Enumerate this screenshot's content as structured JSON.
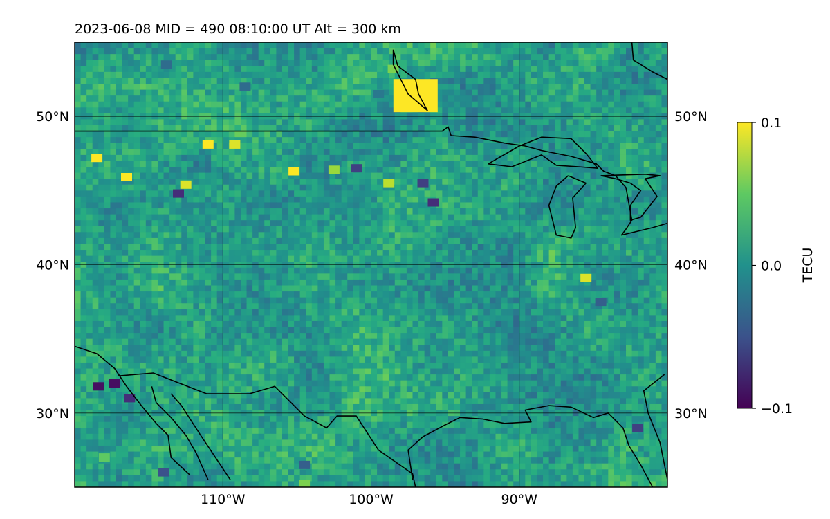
{
  "title": "2023-06-08  MID = 490    08:10:00  UT  Alt = 300 km",
  "map": {
    "lon_range": [
      -120,
      -80
    ],
    "lat_range": [
      25,
      55
    ],
    "lat_ticks": [
      {
        "value": 30,
        "label": "30°N"
      },
      {
        "value": 40,
        "label": "40°N"
      },
      {
        "value": 50,
        "label": "50°N"
      }
    ],
    "lon_ticks": [
      {
        "value": -110,
        "label": "110°W"
      },
      {
        "value": -100,
        "label": "100°W"
      },
      {
        "value": -90,
        "label": "90°W"
      }
    ],
    "gridlines": true,
    "colormap": "viridis",
    "hotspots": [
      {
        "lon": -97,
        "lat": 51.4,
        "tec": 0.1
      },
      {
        "lon": -98.5,
        "lat": 53.2,
        "tec": 0.06
      },
      {
        "lon": -118.5,
        "lat": 47.2,
        "tec": 0.1
      },
      {
        "lon": -116.5,
        "lat": 45.9,
        "tec": 0.1
      },
      {
        "lon": -112.5,
        "lat": 45.4,
        "tec": 0.09
      },
      {
        "lon": -111,
        "lat": 48.1,
        "tec": 0.1
      },
      {
        "lon": -109.2,
        "lat": 48.1,
        "tec": 0.09
      },
      {
        "lon": -105.2,
        "lat": 46.3,
        "tec": 0.1
      },
      {
        "lon": -102.5,
        "lat": 46.4,
        "tec": 0.07
      },
      {
        "lon": -98.8,
        "lat": 45.5,
        "tec": 0.08
      },
      {
        "lon": -85.5,
        "lat": 39.1,
        "tec": 0.09
      },
      {
        "lon": -118,
        "lat": 27,
        "tec": 0.05
      },
      {
        "lon": -104.5,
        "lat": 25.2,
        "tec": 0.06
      }
    ],
    "coldspots": [
      {
        "lon": -113.8,
        "lat": 53.5,
        "tec": -0.03
      },
      {
        "lon": -108.5,
        "lat": 52,
        "tec": -0.03
      },
      {
        "lon": -99.5,
        "lat": 51.5,
        "tec": -0.02
      },
      {
        "lon": -118.4,
        "lat": 31.8,
        "tec": -0.09
      },
      {
        "lon": -116.3,
        "lat": 31,
        "tec": -0.07
      },
      {
        "lon": -117.3,
        "lat": 32,
        "tec": -0.09
      },
      {
        "lon": -114,
        "lat": 26,
        "tec": -0.05
      },
      {
        "lon": -104.5,
        "lat": 26.5,
        "tec": -0.04
      },
      {
        "lon": -95.8,
        "lat": 44.2,
        "tec": -0.07
      },
      {
        "lon": -96.5,
        "lat": 45.5,
        "tec": -0.06
      },
      {
        "lon": -113,
        "lat": 44.8,
        "tec": -0.07
      },
      {
        "lon": -101,
        "lat": 46.5,
        "tec": -0.06
      },
      {
        "lon": -84.5,
        "lat": 37.5,
        "tec": -0.04
      },
      {
        "lon": -82,
        "lat": 29,
        "tec": -0.06
      }
    ],
    "lake_michigan": [
      [
        -86.7,
        46
      ],
      [
        -87.5,
        45.3
      ],
      [
        -88,
        44
      ],
      [
        -87.5,
        42
      ],
      [
        -86.5,
        41.8
      ],
      [
        -86.2,
        42.5
      ],
      [
        -86.4,
        44.5
      ],
      [
        -85.5,
        45.5
      ],
      [
        -86.7,
        46
      ]
    ],
    "lake_huron": [
      [
        -84.5,
        46
      ],
      [
        -83.5,
        45.8
      ],
      [
        -82.5,
        45.5
      ],
      [
        -81.8,
        45
      ],
      [
        -82.5,
        44
      ],
      [
        -82.5,
        43
      ],
      [
        -81.8,
        43.2
      ],
      [
        -80.7,
        44.6
      ],
      [
        -81.5,
        45.8
      ],
      [
        -80.5,
        46
      ],
      [
        -81.5,
        46.1
      ],
      [
        -84.5,
        46
      ]
    ],
    "lake_superior_north": [
      [
        -84.7,
        46.5
      ],
      [
        -85.5,
        47.5
      ],
      [
        -86.5,
        48.5
      ],
      [
        -88.5,
        48.6
      ],
      [
        -90,
        48
      ],
      [
        -92.1,
        46.8
      ]
    ],
    "lake_superior_south": [
      [
        -92.1,
        46.8
      ],
      [
        -90.5,
        46.6
      ],
      [
        -88.5,
        47.4
      ],
      [
        -87.5,
        46.7
      ],
      [
        -86,
        46.6
      ],
      [
        -84.7,
        46.5
      ]
    ],
    "us_canada_border": [
      [
        -120,
        49
      ],
      [
        -95.2,
        49
      ],
      [
        -94.8,
        49.3
      ],
      [
        -94.6,
        48.7
      ],
      [
        -93,
        48.6
      ],
      [
        -91,
        48.2
      ],
      [
        -89.6,
        48
      ],
      [
        -88.5,
        47.7
      ],
      [
        -86.5,
        47.3
      ],
      [
        -84.8,
        46.8
      ],
      [
        -84.3,
        46.3
      ],
      [
        -83.5,
        46
      ],
      [
        -82.8,
        45.2
      ],
      [
        -82.4,
        43
      ],
      [
        -82.8,
        42.4
      ],
      [
        -83.1,
        42
      ],
      [
        -81,
        42.5
      ],
      [
        -80,
        42.8
      ]
    ],
    "hudson_bay": [
      [
        -98.5,
        54.5
      ],
      [
        -98.2,
        53.4
      ],
      [
        -97,
        52.5
      ],
      [
        -96.8,
        51.5
      ],
      [
        -96.2,
        50.4
      ],
      [
        -97.5,
        51.5
      ],
      [
        -98.5,
        53.5
      ],
      [
        -98.5,
        54.5
      ]
    ],
    "east_coast": [
      [
        -82.4,
        55
      ],
      [
        -82.3,
        53.8
      ],
      [
        -81,
        53
      ],
      [
        -80,
        52.5
      ]
    ],
    "us_mexico_border": [
      [
        -117.1,
        32.5
      ],
      [
        -114.7,
        32.7
      ],
      [
        -111.1,
        31.3
      ],
      [
        -108.2,
        31.3
      ],
      [
        -106.5,
        31.8
      ],
      [
        -104.5,
        29.8
      ],
      [
        -103,
        29
      ],
      [
        -102.3,
        29.8
      ],
      [
        -101,
        29.8
      ],
      [
        -99.5,
        27.5
      ],
      [
        -97.2,
        25.9
      ],
      [
        -97,
        25
      ]
    ],
    "gulf_coast": [
      [
        -97.2,
        25.5
      ],
      [
        -97.3,
        26.2
      ],
      [
        -97.5,
        27.5
      ],
      [
        -96.5,
        28.4
      ],
      [
        -95,
        29.2
      ],
      [
        -94,
        29.7
      ],
      [
        -92.5,
        29.6
      ],
      [
        -91,
        29.3
      ],
      [
        -89.2,
        29.4
      ],
      [
        -89.6,
        30.2
      ],
      [
        -88,
        30.5
      ],
      [
        -86.5,
        30.4
      ],
      [
        -85,
        29.7
      ],
      [
        -84,
        30
      ],
      [
        -83,
        29
      ],
      [
        -82.6,
        27.8
      ],
      [
        -81.8,
        26.5
      ],
      [
        -81,
        25
      ]
    ],
    "florida_east": [
      [
        -80,
        25.5
      ],
      [
        -80.5,
        28
      ],
      [
        -81.3,
        30
      ],
      [
        -81.6,
        31.5
      ],
      [
        -80.2,
        32.6
      ]
    ],
    "pacific_coast": [
      [
        -120,
        34.5
      ],
      [
        -118.5,
        34
      ],
      [
        -117.3,
        33
      ],
      [
        -116.5,
        31.8
      ],
      [
        -115.5,
        30.5
      ],
      [
        -114.5,
        29.3
      ],
      [
        -113.7,
        28.5
      ],
      [
        -113.5,
        27
      ],
      [
        -112.2,
        25.8
      ]
    ],
    "baja_gulf": [
      [
        -114.8,
        31.8
      ],
      [
        -114.5,
        30.7
      ],
      [
        -113.5,
        29.7
      ],
      [
        -112.5,
        28.5
      ],
      [
        -111.8,
        27.3
      ],
      [
        -111,
        25.5
      ]
    ],
    "baja_gulf_east": [
      [
        -113.5,
        31.3
      ],
      [
        -112.8,
        30.5
      ],
      [
        -111.5,
        28.5
      ],
      [
        -110.5,
        27
      ],
      [
        -109.5,
        25.5
      ]
    ]
  },
  "colorbar": {
    "label": "TECU",
    "min": -0.1,
    "max": 0.1,
    "ticks": [
      {
        "value": 0.1,
        "label": "0.1"
      },
      {
        "value": 0.0,
        "label": "0.0"
      },
      {
        "value": -0.1,
        "label": "−0.1"
      }
    ]
  }
}
